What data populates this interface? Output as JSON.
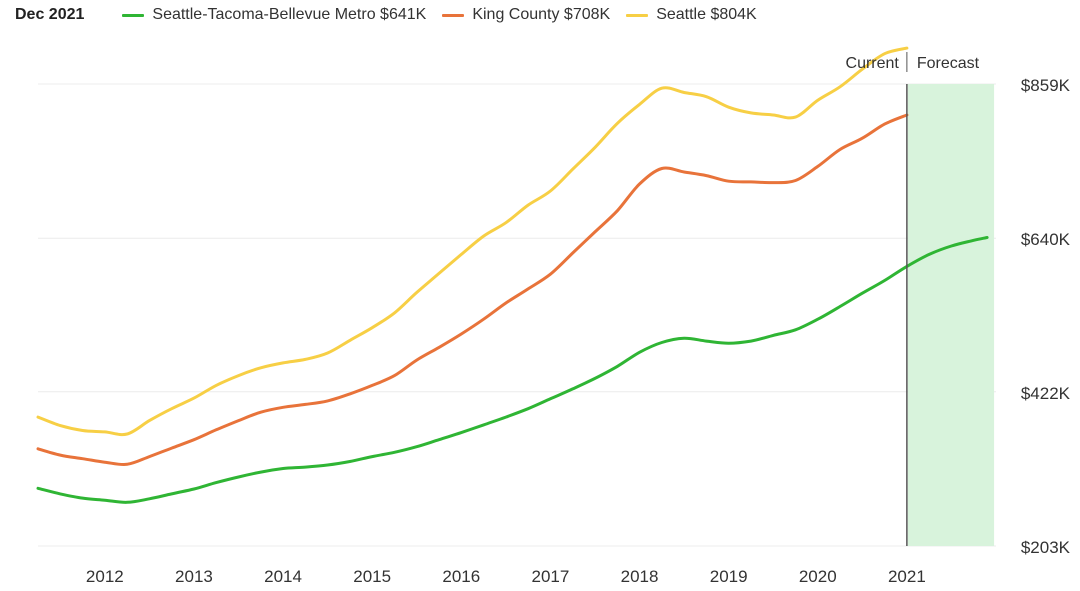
{
  "legend": {
    "date": "Dec 2021",
    "items": [
      {
        "label": "Seattle-Tacoma-Bellevue Metro $641K",
        "color": "#2fb534"
      },
      {
        "label": "King County $708K",
        "color": "#e8733a"
      },
      {
        "label": "Seattle $804K",
        "color": "#f7cf45"
      }
    ]
  },
  "chart_data": {
    "type": "line",
    "title": "Dec 2021",
    "xlabel": "",
    "ylabel": "",
    "xlim": [
      2011.25,
      2022.0
    ],
    "ylim": [
      203,
      859
    ],
    "x_ticks": [
      2012,
      2013,
      2014,
      2015,
      2016,
      2017,
      2018,
      2019,
      2020,
      2021
    ],
    "y_ticks": [
      {
        "value": 203,
        "label": "$203K"
      },
      {
        "value": 422,
        "label": "$422K"
      },
      {
        "value": 640,
        "label": "$640K"
      },
      {
        "value": 859,
        "label": "$859K"
      }
    ],
    "grid": "horizontal",
    "divider_x": 2021.0,
    "divider_labels": {
      "left": "Current",
      "right": "Forecast"
    },
    "forecast_range": [
      2021.0,
      2021.9
    ],
    "forecast_color": "#d8f3dc",
    "series": [
      {
        "name": "Seattle",
        "color": "#f7cf45",
        "x": [
          2011.25,
          2011.5,
          2011.75,
          2012.0,
          2012.25,
          2012.5,
          2012.75,
          2013.0,
          2013.25,
          2013.5,
          2013.75,
          2014.0,
          2014.25,
          2014.5,
          2014.75,
          2015.0,
          2015.25,
          2015.5,
          2015.75,
          2016.0,
          2016.25,
          2016.5,
          2016.75,
          2017.0,
          2017.25,
          2017.5,
          2017.75,
          2018.0,
          2018.25,
          2018.5,
          2018.75,
          2019.0,
          2019.25,
          2019.5,
          2019.75,
          2020.0,
          2020.25,
          2020.5,
          2020.75,
          2021.0
        ],
        "values": [
          386,
          374,
          367,
          365,
          362,
          381,
          398,
          413,
          431,
          445,
          456,
          463,
          468,
          477,
          495,
          513,
          534,
          563,
          590,
          617,
          643,
          662,
          687,
          707,
          738,
          769,
          803,
          830,
          853,
          847,
          841,
          826,
          818,
          815,
          812,
          836,
          855,
          880,
          902,
          910
        ]
      },
      {
        "name": "King County",
        "color": "#e8733a",
        "x": [
          2011.25,
          2011.5,
          2011.75,
          2012.0,
          2012.25,
          2012.5,
          2012.75,
          2013.0,
          2013.25,
          2013.5,
          2013.75,
          2014.0,
          2014.25,
          2014.5,
          2014.75,
          2015.0,
          2015.25,
          2015.5,
          2015.75,
          2016.0,
          2016.25,
          2016.5,
          2016.75,
          2017.0,
          2017.25,
          2017.5,
          2017.75,
          2018.0,
          2018.25,
          2018.5,
          2018.75,
          2019.0,
          2019.25,
          2019.5,
          2019.75,
          2020.0,
          2020.25,
          2020.5,
          2020.75,
          2021.0
        ],
        "values": [
          341,
          332,
          327,
          322,
          319,
          330,
          342,
          354,
          368,
          381,
          393,
          400,
          404,
          409,
          419,
          431,
          445,
          467,
          485,
          504,
          525,
          548,
          568,
          589,
          619,
          649,
          679,
          717,
          739,
          734,
          729,
          721,
          720,
          719,
          722,
          742,
          766,
          782,
          802,
          815
        ]
      },
      {
        "name": "Seattle-Tacoma-Bellevue Metro",
        "color": "#2fb534",
        "x": [
          2011.25,
          2011.5,
          2011.75,
          2012.0,
          2012.25,
          2012.5,
          2012.75,
          2013.0,
          2013.25,
          2013.5,
          2013.75,
          2014.0,
          2014.25,
          2014.5,
          2014.75,
          2015.0,
          2015.25,
          2015.5,
          2015.75,
          2016.0,
          2016.25,
          2016.5,
          2016.75,
          2017.0,
          2017.25,
          2017.5,
          2017.75,
          2018.0,
          2018.25,
          2018.5,
          2018.75,
          2019.0,
          2019.25,
          2019.5,
          2019.75,
          2020.0,
          2020.25,
          2020.5,
          2020.75,
          2021.0,
          2021.25,
          2021.5,
          2021.75,
          2021.9
        ],
        "values": [
          285,
          277,
          271,
          268,
          265,
          270,
          277,
          284,
          293,
          301,
          308,
          313,
          315,
          318,
          323,
          330,
          336,
          344,
          354,
          364,
          375,
          386,
          398,
          412,
          426,
          441,
          458,
          478,
          492,
          498,
          494,
          491,
          494,
          502,
          510,
          525,
          543,
          562,
          580,
          600,
          617,
          629,
          637,
          641
        ]
      }
    ]
  }
}
